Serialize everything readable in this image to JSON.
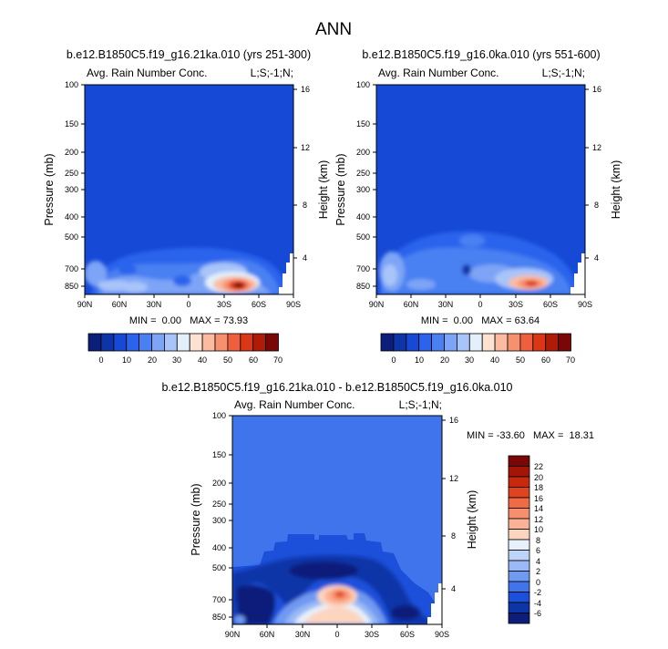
{
  "figure": {
    "title": "ANN"
  },
  "chart_data": [
    {
      "type": "heatmap",
      "title": "b.e12.B1850C5.f19_g16.21ka.010 (yrs 251-300)",
      "left_label": "Avg. Rain Number Conc.",
      "right_label": "L;S;-1;N;",
      "ylabel": "Pressure (mb)",
      "y2label": "Height (km)",
      "x_ticks": [
        "90N",
        "60N",
        "30N",
        "0",
        "30S",
        "60S",
        "90S"
      ],
      "y_ticks": [
        "100",
        "150",
        "200",
        "250",
        "300",
        "400",
        "500",
        "700",
        "850"
      ],
      "y2_ticks": [
        "16",
        "12",
        "8",
        "4"
      ],
      "stats_text": "MIN =  0.00   MAX = 73.93",
      "min": 0.0,
      "max": 73.93,
      "colorbar": {
        "orientation": "horizontal",
        "tick_labels": [
          "0",
          "10",
          "20",
          "30",
          "40",
          "50",
          "60",
          "70"
        ],
        "colors": [
          "#0a1e7a",
          "#0d35a8",
          "#1549d6",
          "#2b63ec",
          "#4a80f2",
          "#7da4f6",
          "#a9c4f9",
          "#e3f0fb",
          "#fde2d2",
          "#fbbba1",
          "#f6906f",
          "#ee5f3e",
          "#db3616",
          "#b01b08",
          "#7a0606"
        ]
      },
      "features": [
        {
          "label": "background",
          "value": 3
        },
        {
          "label": "main maximum near 40S, 850mb",
          "value": 73.93
        }
      ]
    },
    {
      "type": "heatmap",
      "title": "b.e12.B1850C5.f19_g16.0ka.010 (yrs 551-600)",
      "left_label": "Avg. Rain Number Conc.",
      "right_label": "L;S;-1;N;",
      "ylabel": "Pressure (mb)",
      "y2label": "Height (km)",
      "x_ticks": [
        "90N",
        "60N",
        "30N",
        "0",
        "30S",
        "60S",
        "90S"
      ],
      "y_ticks": [
        "100",
        "150",
        "200",
        "250",
        "300",
        "400",
        "500",
        "700",
        "850"
      ],
      "y2_ticks": [
        "16",
        "12",
        "8",
        "4"
      ],
      "stats_text": "MIN =  0.00   MAX = 63.64",
      "min": 0.0,
      "max": 63.64,
      "colorbar": {
        "orientation": "horizontal",
        "tick_labels": [
          "0",
          "10",
          "20",
          "30",
          "40",
          "50",
          "60",
          "70"
        ],
        "colors": [
          "#0a1e7a",
          "#0d35a8",
          "#1549d6",
          "#2b63ec",
          "#4a80f2",
          "#7da4f6",
          "#a9c4f9",
          "#e3f0fb",
          "#fde2d2",
          "#fbbba1",
          "#f6906f",
          "#ee5f3e",
          "#db3616",
          "#b01b08",
          "#7a0606"
        ]
      },
      "features": [
        {
          "label": "background",
          "value": 3
        },
        {
          "label": "main maximum near 40S, 850mb",
          "value": 63.64
        }
      ]
    },
    {
      "type": "heatmap",
      "title": "b.e12.B1850C5.f19_g16.21ka.010 - b.e12.B1850C5.f19_g16.0ka.010",
      "left_label": "Avg. Rain Number Conc.",
      "right_label": "L;S;-1;N;",
      "ylabel": "Pressure (mb)",
      "y2label": "Height (km)",
      "x_ticks": [
        "90N",
        "60N",
        "30N",
        "0",
        "30S",
        "60S",
        "90S"
      ],
      "y_ticks": [
        "100",
        "150",
        "200",
        "250",
        "300",
        "400",
        "500",
        "700",
        "850"
      ],
      "y2_ticks": [
        "16",
        "12",
        "8",
        "4"
      ],
      "stats_text": "MIN = -33.60   MAX =  18.31",
      "min": -33.6,
      "max": 18.31,
      "colorbar": {
        "orientation": "vertical",
        "tick_labels": [
          "22",
          "20",
          "18",
          "16",
          "14",
          "12",
          "10",
          "8",
          "6",
          "4",
          "2",
          "0",
          "-2",
          "-4",
          "-6"
        ],
        "colors": [
          "#7a0606",
          "#a31506",
          "#c8280c",
          "#e0431f",
          "#f06a44",
          "#f78f6c",
          "#fab396",
          "#fcd5c0",
          "#e8f1fb",
          "#bdd4f8",
          "#9ab9f5",
          "#6f9af2",
          "#3f74ec",
          "#1d50da",
          "#0d35a8",
          "#0a1e7a"
        ]
      },
      "features": [
        {
          "label": "background",
          "value": -1
        },
        {
          "label": "maximum near equator, 700mb",
          "value": 18.31
        },
        {
          "label": "minimum near 90N-80N, 700mb",
          "value": -33.6
        }
      ]
    }
  ]
}
